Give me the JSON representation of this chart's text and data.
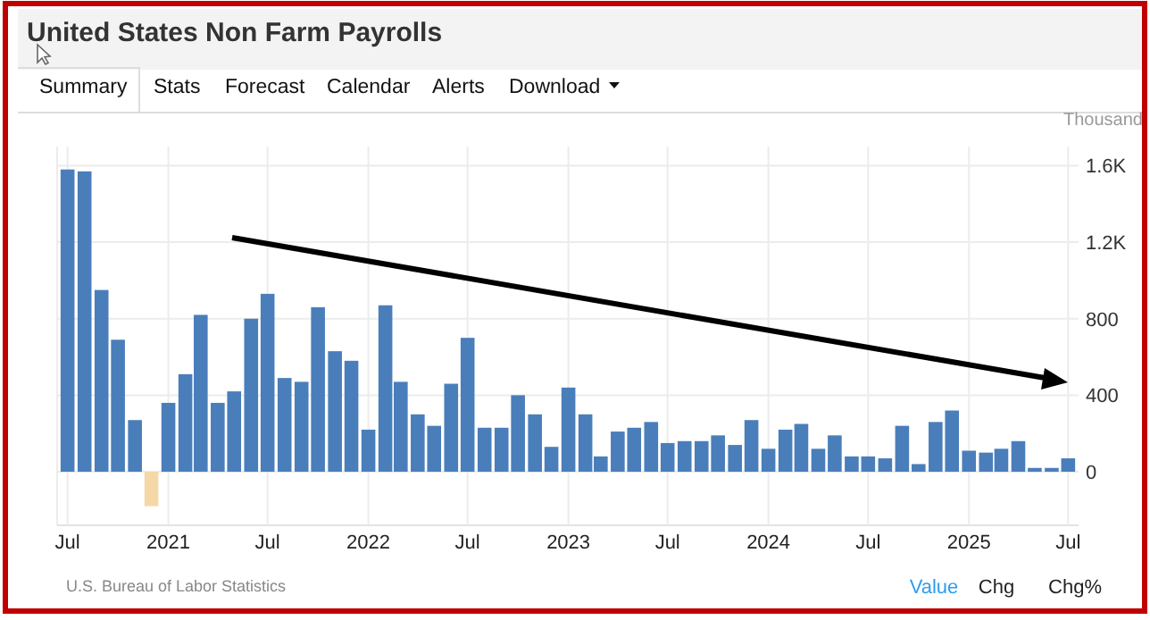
{
  "chart_data": {
    "type": "bar",
    "title": "United States Non Farm Payrolls",
    "ylabel": "Thousand",
    "annotations": [
      "U.S. Bureau of Labor Statistics",
      "Summary",
      "Stats",
      "Forecast",
      "Calendar",
      "Alerts",
      "Download",
      "Value",
      "Chg",
      "Chg%"
    ],
    "x": [
      "2020-07",
      "2020-08",
      "2020-09",
      "2020-10",
      "2020-11",
      "2020-12",
      "2021-01",
      "2021-02",
      "2021-03",
      "2021-04",
      "2021-05",
      "2021-06",
      "2021-07",
      "2021-08",
      "2021-09",
      "2021-10",
      "2021-11",
      "2021-12",
      "2022-01",
      "2022-02",
      "2022-03",
      "2022-04",
      "2022-05",
      "2022-06",
      "2022-07",
      "2022-08",
      "2022-09",
      "2022-10",
      "2022-11",
      "2022-12",
      "2023-01",
      "2023-02",
      "2023-03",
      "2023-04",
      "2023-05",
      "2023-06",
      "2023-07",
      "2023-08",
      "2023-09",
      "2023-10",
      "2023-11",
      "2023-12",
      "2024-01",
      "2024-02",
      "2024-03",
      "2024-04",
      "2024-05",
      "2024-06",
      "2024-07",
      "2024-08",
      "2024-09",
      "2024-10",
      "2024-11",
      "2024-12",
      "2025-01",
      "2025-02",
      "2025-03",
      "2025-04",
      "2025-05",
      "2025-06",
      "2025-07"
    ],
    "values": [
      1580,
      1570,
      950,
      690,
      270,
      -180,
      360,
      510,
      820,
      360,
      420,
      800,
      930,
      490,
      470,
      860,
      630,
      580,
      220,
      870,
      470,
      300,
      240,
      460,
      700,
      230,
      230,
      400,
      300,
      130,
      440,
      300,
      80,
      210,
      230,
      260,
      150,
      160,
      160,
      190,
      140,
      270,
      120,
      220,
      250,
      120,
      190,
      80,
      80,
      70,
      240,
      40,
      260,
      320,
      110,
      100,
      120,
      160,
      20,
      20,
      70
    ],
    "colors": [
      "#4a7ebb",
      "#4a7ebb",
      "#4a7ebb",
      "#4a7ebb",
      "#4a7ebb",
      "#f6d7a7",
      "#4a7ebb",
      "#4a7ebb",
      "#4a7ebb",
      "#4a7ebb",
      "#4a7ebb",
      "#4a7ebb",
      "#4a7ebb",
      "#4a7ebb",
      "#4a7ebb",
      "#4a7ebb",
      "#4a7ebb",
      "#4a7ebb",
      "#4a7ebb",
      "#4a7ebb",
      "#4a7ebb",
      "#4a7ebb",
      "#4a7ebb",
      "#4a7ebb",
      "#4a7ebb",
      "#4a7ebb",
      "#4a7ebb",
      "#4a7ebb",
      "#4a7ebb",
      "#4a7ebb",
      "#4a7ebb",
      "#4a7ebb",
      "#4a7ebb",
      "#4a7ebb",
      "#4a7ebb",
      "#4a7ebb",
      "#4a7ebb",
      "#4a7ebb",
      "#4a7ebb",
      "#4a7ebb",
      "#4a7ebb",
      "#4a7ebb",
      "#4a7ebb",
      "#4a7ebb",
      "#4a7ebb",
      "#4a7ebb",
      "#4a7ebb",
      "#4a7ebb",
      "#4a7ebb",
      "#4a7ebb",
      "#4a7ebb",
      "#4a7ebb",
      "#4a7ebb",
      "#4a7ebb",
      "#4a7ebb",
      "#4a7ebb",
      "#4a7ebb",
      "#4a7ebb",
      "#4a7ebb",
      "#4a7ebb",
      "#4a7ebb"
    ],
    "xlim": [
      "2020-06-12",
      "2025-07-20"
    ],
    "xticks": [
      {
        "value": "2020-07",
        "label": "Jul"
      },
      {
        "value": "2021-01",
        "label": "2021"
      },
      {
        "value": "2021-07",
        "label": "Jul"
      },
      {
        "value": "2022-01",
        "label": "2022"
      },
      {
        "value": "2022-07",
        "label": "Jul"
      },
      {
        "value": "2023-01",
        "label": "2023"
      },
      {
        "value": "2023-07",
        "label": "Jul"
      },
      {
        "value": "2024-01",
        "label": "2024"
      },
      {
        "value": "2024-07",
        "label": "Jul"
      },
      {
        "value": "2025-01",
        "label": "2025"
      },
      {
        "value": "2025-07",
        "label": "Jul"
      }
    ],
    "ylim": [
      -280,
      1700
    ],
    "yticks": [
      0,
      400,
      800,
      {
        "value": 1200,
        "label": "1.2K"
      },
      {
        "value": 1600,
        "label": "1.6K"
      }
    ],
    "grid": true
  }
}
